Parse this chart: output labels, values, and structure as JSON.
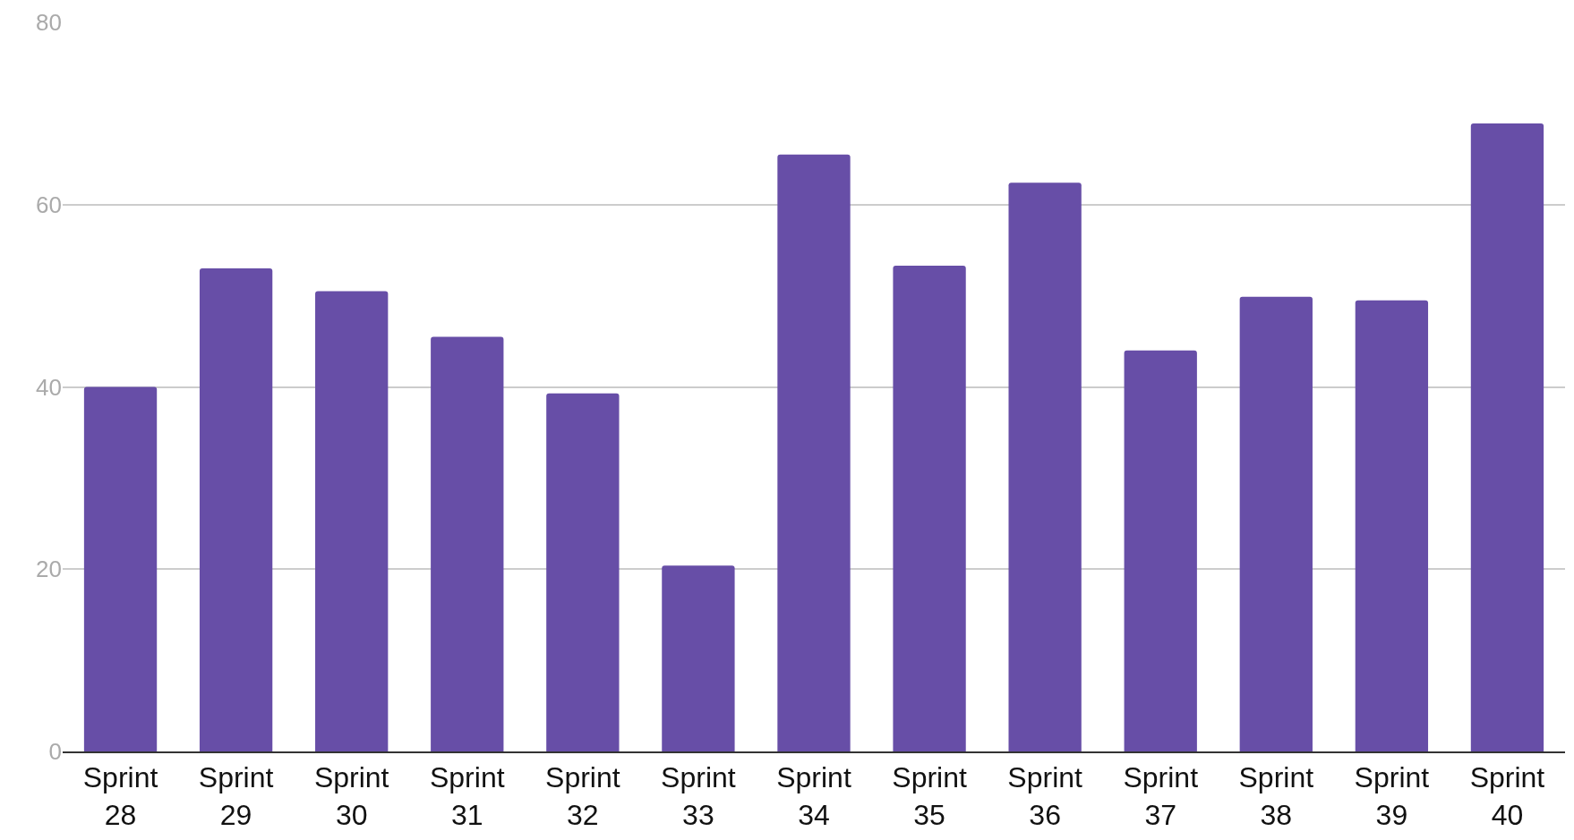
{
  "chart_data": {
    "type": "bar",
    "categories": [
      "Sprint 28",
      "Sprint 29",
      "Sprint 30",
      "Sprint 31",
      "Sprint 32",
      "Sprint 33",
      "Sprint 34",
      "Sprint 35",
      "Sprint 36",
      "Sprint 37",
      "Sprint 38",
      "Sprint 39",
      "Sprint 40"
    ],
    "values": [
      40,
      53,
      50.5,
      45.5,
      39.3,
      20.4,
      65.5,
      53.3,
      62.4,
      44,
      49.9,
      49.5,
      68.9
    ],
    "color": "#674ea7",
    "ylim": [
      0,
      80
    ],
    "yticks": [
      0,
      20,
      40,
      60,
      80
    ],
    "grid": "y"
  }
}
